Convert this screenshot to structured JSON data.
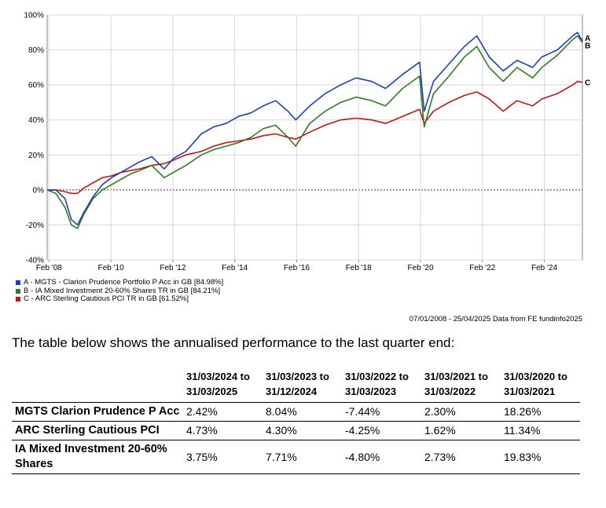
{
  "chart_data": {
    "type": "line",
    "ylim": [
      -40,
      100
    ],
    "y_ticks": [
      "100%",
      "80%",
      "60%",
      "40%",
      "20%",
      "0%",
      "-20%",
      "-40%"
    ],
    "y_tick_values": [
      100,
      80,
      60,
      40,
      20,
      0,
      -20,
      -40
    ],
    "x_ticks": [
      "Feb '08",
      "Feb '10",
      "Feb '12",
      "Feb '14",
      "Feb '16",
      "Feb '18",
      "Feb '20",
      "Feb '22",
      "Feb '24"
    ],
    "x_tick_values": [
      2008.08,
      2010.08,
      2012.08,
      2014.08,
      2016.08,
      2018.08,
      2020.08,
      2022.08,
      2024.08
    ],
    "xlim": [
      2008.02,
      2025.31
    ],
    "grid": true,
    "legend_position": "bottom-left",
    "series": [
      {
        "name": "A - MGTS - Clarion Prudence Portfolio P Acc in GB [84.98%]",
        "end_label": "A",
        "color": "#1f3fbf",
        "x": [
          2008.02,
          2008.3,
          2008.6,
          2008.8,
          2009.0,
          2009.2,
          2009.5,
          2009.8,
          2010.1,
          2010.4,
          2010.7,
          2011.0,
          2011.4,
          2011.8,
          2012.1,
          2012.5,
          2013.0,
          2013.4,
          2013.8,
          2014.2,
          2014.6,
          2015.0,
          2015.4,
          2015.8,
          2016.05,
          2016.5,
          2017.0,
          2017.5,
          2018.0,
          2018.5,
          2018.95,
          2019.5,
          2020.05,
          2020.2,
          2020.5,
          2021.0,
          2021.5,
          2021.9,
          2022.3,
          2022.75,
          2023.2,
          2023.7,
          2024.0,
          2024.5,
          2025.0,
          2025.15,
          2025.31
        ],
        "y": [
          0,
          0,
          -5,
          -17,
          -20,
          -13,
          -4,
          3,
          7,
          10,
          13,
          16,
          19,
          12,
          18,
          22,
          32,
          36,
          38,
          42,
          44,
          48,
          51,
          45,
          40,
          48,
          55,
          60,
          64,
          62,
          58,
          66,
          73,
          45,
          62,
          72,
          82,
          88,
          76,
          68,
          74,
          70,
          76,
          80,
          88,
          90,
          84.98
        ]
      },
      {
        "name": "B - IA Mixed Investment 20-60% Shares TR in GB [84.21%]",
        "end_label": "B",
        "color": "#2e7d1e",
        "x": [
          2008.02,
          2008.3,
          2008.6,
          2008.8,
          2009.0,
          2009.2,
          2009.5,
          2009.8,
          2010.1,
          2010.4,
          2010.7,
          2011.0,
          2011.4,
          2011.8,
          2012.1,
          2012.5,
          2013.0,
          2013.4,
          2013.8,
          2014.2,
          2014.6,
          2015.0,
          2015.4,
          2015.8,
          2016.05,
          2016.5,
          2017.0,
          2017.5,
          2018.0,
          2018.5,
          2018.95,
          2019.5,
          2020.05,
          2020.2,
          2020.5,
          2021.0,
          2021.5,
          2021.9,
          2022.3,
          2022.75,
          2023.2,
          2023.7,
          2024.0,
          2024.5,
          2025.0,
          2025.15,
          2025.31
        ],
        "y": [
          0,
          -2,
          -10,
          -20,
          -22,
          -14,
          -5,
          0,
          3,
          6,
          9,
          11,
          14,
          7,
          10,
          14,
          20,
          23,
          25,
          27,
          30,
          35,
          37,
          30,
          25,
          38,
          45,
          50,
          53,
          51,
          48,
          58,
          65,
          36,
          55,
          65,
          76,
          82,
          70,
          62,
          70,
          64,
          70,
          77,
          86,
          88,
          84.21
        ]
      },
      {
        "name": "C - ARC Sterling Cautious PCI TR in GB [61.52%]",
        "end_label": "C",
        "color": "#cc1111",
        "x": [
          2008.02,
          2008.3,
          2008.6,
          2008.8,
          2009.0,
          2009.2,
          2009.5,
          2009.8,
          2010.1,
          2010.4,
          2010.7,
          2011.0,
          2011.4,
          2011.8,
          2012.1,
          2012.5,
          2013.0,
          2013.4,
          2013.8,
          2014.2,
          2014.6,
          2015.0,
          2015.4,
          2015.8,
          2016.05,
          2016.5,
          2017.0,
          2017.5,
          2018.0,
          2018.5,
          2018.95,
          2019.5,
          2020.05,
          2020.2,
          2020.5,
          2021.0,
          2021.5,
          2021.9,
          2022.3,
          2022.75,
          2023.2,
          2023.7,
          2024.0,
          2024.5,
          2025.0,
          2025.15,
          2025.31
        ],
        "y": [
          0,
          0,
          -1,
          -2,
          -2,
          1,
          4,
          7,
          8,
          10,
          11,
          12,
          14,
          15,
          17,
          20,
          22,
          25,
          27,
          28,
          29,
          31,
          32,
          30,
          29,
          33,
          37,
          40,
          41,
          40,
          38,
          42,
          46,
          38,
          45,
          50,
          54,
          56,
          52,
          45,
          51,
          48,
          52,
          55,
          60,
          62,
          61.52
        ]
      }
    ]
  },
  "source_text": "07/01/2008 - 25/04/2025 Data from FE fundinfo2025",
  "intro_text": "The table below shows the annualised performance to the last quarter end:",
  "table": {
    "headers": [
      "",
      "31/03/2024 to 31/03/2025",
      "31/03/2023 to 31/12/2024",
      "31/03/2022 to 31/03/2023",
      "31/03/2021 to 31/03/2022",
      "31/03/2020 to 31/03/2021"
    ],
    "rows": [
      {
        "name": "MGTS Clarion Prudence P Acc",
        "values": [
          "2.42%",
          "8.04%",
          "-7.44%",
          "2.30%",
          "18.26%"
        ]
      },
      {
        "name": "ARC Sterling Cautious PCI",
        "values": [
          "4.73%",
          "4.30%",
          "-4.25%",
          "1.62%",
          "11.34%"
        ]
      },
      {
        "name": "IA Mixed Investment 20-60% Shares",
        "values": [
          "3.75%",
          "7.71%",
          "-4.80%",
          "2.73%",
          "19.83%"
        ]
      }
    ]
  }
}
